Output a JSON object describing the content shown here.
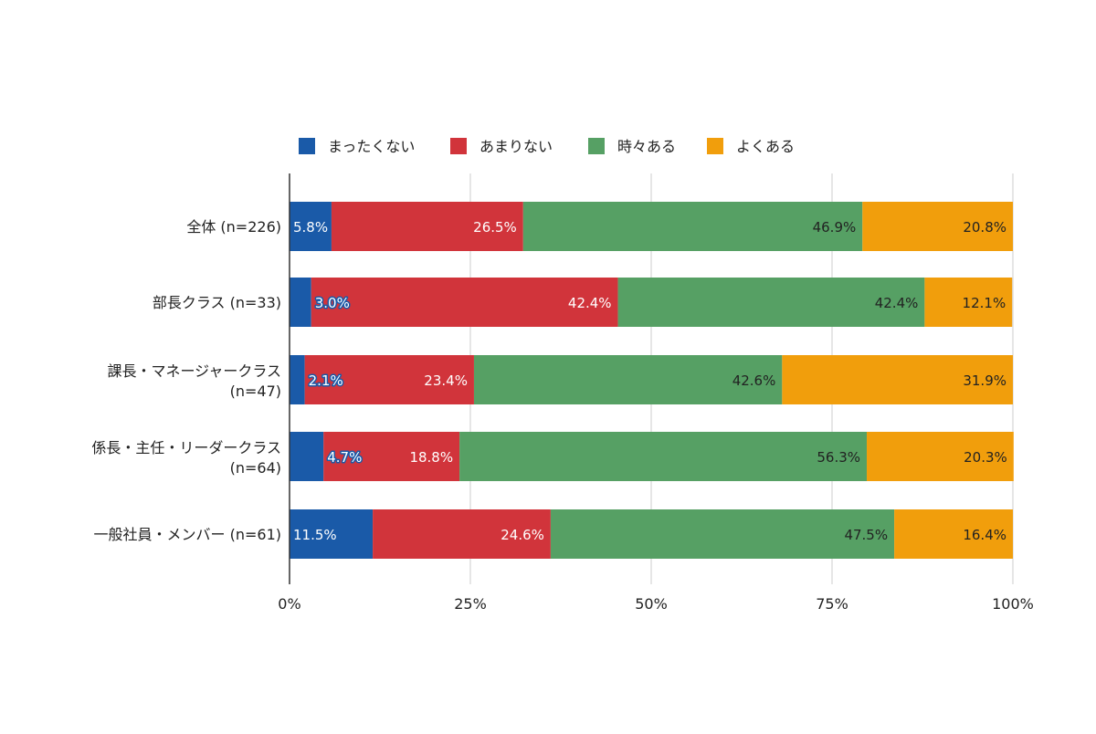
{
  "chart_data": {
    "type": "bar",
    "orientation": "horizontal",
    "stacked": "percent",
    "categories": [
      "全体 (n=226)",
      "部長クラス (n=33)",
      "課長・マネージャークラス (n=47)",
      "係長・主任・リーダークラス (n=64)",
      "一般社員・メンバー (n=61)"
    ],
    "category_lines": [
      [
        "全体 (n=226)"
      ],
      [
        "部長クラス (n=33)"
      ],
      [
        "課長・マネージャークラス",
        "(n=47)"
      ],
      [
        "係長・主任・リーダークラス",
        "(n=64)"
      ],
      [
        "一般社員・メンバー (n=61)"
      ]
    ],
    "series": [
      {
        "name": "まったくない",
        "color": "#1a5aa8",
        "values": [
          5.8,
          3.0,
          2.1,
          4.7,
          11.5
        ],
        "labels": [
          "5.8%",
          "3.0%",
          "2.1%",
          "4.7%",
          "11.5%"
        ]
      },
      {
        "name": "あまりない",
        "color": "#d1343b",
        "values": [
          26.5,
          42.4,
          23.4,
          18.8,
          24.6
        ],
        "labels": [
          "26.5%",
          "42.4%",
          "23.4%",
          "18.8%",
          "24.6%"
        ]
      },
      {
        "name": "時々ある",
        "color": "#56a064",
        "values": [
          46.9,
          42.4,
          42.6,
          56.3,
          47.5
        ],
        "labels": [
          "46.9%",
          "42.4%",
          "42.6%",
          "56.3%",
          "47.5%"
        ]
      },
      {
        "name": "よくある",
        "color": "#f19e0c",
        "values": [
          20.8,
          12.1,
          31.9,
          20.3,
          16.4
        ],
        "labels": [
          "20.8%",
          "12.1%",
          "31.9%",
          "20.3%",
          "16.4%"
        ]
      }
    ],
    "xlim": [
      0,
      100
    ],
    "xticks": [
      "0%",
      "25%",
      "50%",
      "75%",
      "100%"
    ],
    "grid": true,
    "legend_position": "top"
  }
}
